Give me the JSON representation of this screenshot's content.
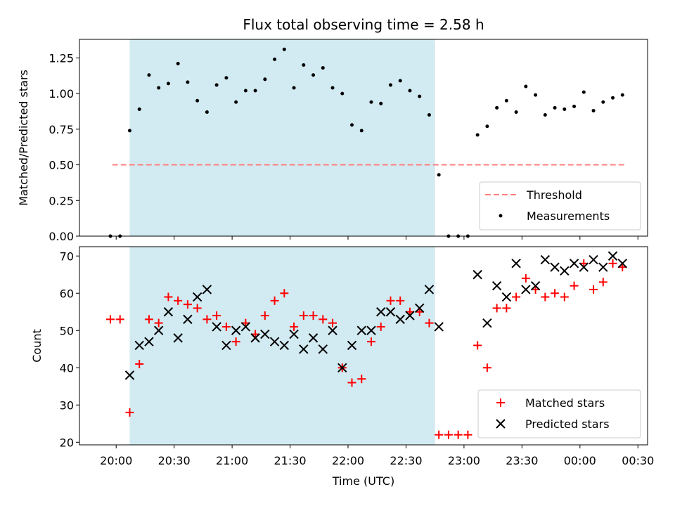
{
  "chart_data": [
    {
      "panel": "top",
      "type": "scatter",
      "title": "Flux total observing time = 2.58 h",
      "ylabel": "Matched/Predicted stars",
      "ylim": [
        0,
        1.38
      ],
      "yticks": [
        0,
        0.25,
        0.5,
        0.75,
        1.0,
        1.25
      ],
      "ytick_labels": [
        "0.00",
        "0.25",
        "0.50",
        "0.75",
        "1.00",
        "1.25"
      ],
      "shaded_interval": [
        "20:07",
        "22:45"
      ],
      "shade_color": "#add8e6",
      "threshold": {
        "name": "Threshold",
        "value": 0.5,
        "x_start": "19:58",
        "x_end": "00:23",
        "color": "#ff7f7f"
      },
      "series": [
        {
          "name": "Measurements",
          "color": "#000000",
          "x": [
            "19:57",
            "20:02",
            "20:07",
            "20:12",
            "20:17",
            "20:22",
            "20:27",
            "20:32",
            "20:37",
            "20:42",
            "20:47",
            "20:52",
            "20:57",
            "21:02",
            "21:07",
            "21:12",
            "21:17",
            "21:22",
            "21:27",
            "21:32",
            "21:37",
            "21:42",
            "21:47",
            "21:52",
            "21:57",
            "22:02",
            "22:07",
            "22:12",
            "22:17",
            "22:22",
            "22:27",
            "22:32",
            "22:37",
            "22:42",
            "22:47",
            "22:52",
            "22:57",
            "23:02",
            "23:07",
            "23:12",
            "23:17",
            "23:22",
            "23:27",
            "23:32",
            "23:37",
            "23:42",
            "23:47",
            "23:52",
            "23:57",
            "00:02",
            "00:07",
            "00:12",
            "00:17",
            "00:22"
          ],
          "y": [
            0,
            0,
            0.74,
            0.89,
            1.13,
            1.04,
            1.07,
            1.21,
            1.08,
            0.95,
            0.87,
            1.06,
            1.11,
            0.94,
            1.02,
            1.02,
            1.1,
            1.24,
            1.31,
            1.04,
            1.2,
            1.13,
            1.18,
            1.04,
            1.0,
            0.78,
            0.74,
            0.94,
            0.93,
            1.06,
            1.09,
            1.02,
            0.98,
            0.85,
            0.43,
            0,
            0,
            0,
            0.71,
            0.77,
            0.9,
            0.95,
            0.87,
            1.05,
            0.99,
            0.85,
            0.9,
            0.89,
            0.91,
            1.01,
            0.88,
            0.94,
            0.97,
            0.99
          ]
        }
      ],
      "legend": {
        "placement": "lower-right",
        "entries": [
          "Threshold",
          "Measurements"
        ]
      }
    },
    {
      "panel": "bottom",
      "type": "scatter",
      "xlabel": "Time (UTC)",
      "ylabel": "Count",
      "ylim": [
        19.3,
        72.5
      ],
      "yticks": [
        20,
        30,
        40,
        50,
        60,
        70
      ],
      "ytick_labels": [
        "20",
        "30",
        "40",
        "50",
        "60",
        "70"
      ],
      "xticks": [
        "20:00",
        "20:30",
        "21:00",
        "21:30",
        "22:00",
        "22:30",
        "23:00",
        "23:30",
        "00:00",
        "00:30"
      ],
      "xlim": [
        "19:41",
        "00:35"
      ],
      "shaded_interval": [
        "20:07",
        "22:45"
      ],
      "shade_color": "#add8e6",
      "series": [
        {
          "name": "Matched stars",
          "color": "#ff0000",
          "marker": "+",
          "x": [
            "19:57",
            "20:02",
            "20:07",
            "20:12",
            "20:17",
            "20:22",
            "20:27",
            "20:32",
            "20:37",
            "20:42",
            "20:47",
            "20:52",
            "20:57",
            "21:02",
            "21:07",
            "21:12",
            "21:17",
            "21:22",
            "21:27",
            "21:32",
            "21:37",
            "21:42",
            "21:47",
            "21:52",
            "21:57",
            "22:02",
            "22:07",
            "22:12",
            "22:17",
            "22:22",
            "22:27",
            "22:32",
            "22:37",
            "22:42",
            "22:47",
            "22:52",
            "22:57",
            "23:02",
            "23:07",
            "23:12",
            "23:17",
            "23:22",
            "23:27",
            "23:32",
            "23:37",
            "23:42",
            "23:47",
            "23:52",
            "23:57",
            "00:02",
            "00:07",
            "00:12",
            "00:17",
            "00:22"
          ],
          "y": [
            53,
            53,
            28,
            41,
            53,
            52,
            59,
            58,
            57,
            56,
            53,
            54,
            51,
            47,
            52,
            49,
            54,
            58,
            60,
            51,
            54,
            54,
            53,
            52,
            40,
            36,
            37,
            47,
            51,
            58,
            58,
            55,
            55,
            52,
            22,
            22,
            22,
            22,
            46,
            40,
            56,
            56,
            59,
            64,
            61,
            59,
            60,
            59,
            62,
            68,
            61,
            63,
            68,
            67
          ]
        },
        {
          "name": "Predicted stars",
          "color": "#000000",
          "marker": "x",
          "x": [
            "20:07",
            "20:12",
            "20:17",
            "20:22",
            "20:27",
            "20:32",
            "20:37",
            "20:42",
            "20:47",
            "20:52",
            "20:57",
            "21:02",
            "21:07",
            "21:12",
            "21:17",
            "21:22",
            "21:27",
            "21:32",
            "21:37",
            "21:42",
            "21:47",
            "21:52",
            "21:57",
            "22:02",
            "22:07",
            "22:12",
            "22:17",
            "22:22",
            "22:27",
            "22:32",
            "22:37",
            "22:42",
            "22:47",
            "23:07",
            "23:12",
            "23:17",
            "23:22",
            "23:27",
            "23:32",
            "23:37",
            "23:42",
            "23:47",
            "23:52",
            "23:57",
            "00:02",
            "00:07",
            "00:12",
            "00:17",
            "00:22"
          ],
          "y": [
            38,
            46,
            47,
            50,
            55,
            48,
            53,
            59,
            61,
            51,
            46,
            50,
            51,
            48,
            49,
            47,
            46,
            49,
            45,
            48,
            45,
            50,
            40,
            46,
            50,
            50,
            55,
            55,
            53,
            54,
            56,
            61,
            51,
            65,
            52,
            62,
            59,
            68,
            61,
            62,
            69,
            67,
            66,
            68,
            67,
            69,
            67,
            70,
            68
          ]
        }
      ],
      "legend": {
        "placement": "lower-right",
        "entries": [
          "Matched stars",
          "Predicted stars"
        ]
      }
    }
  ]
}
